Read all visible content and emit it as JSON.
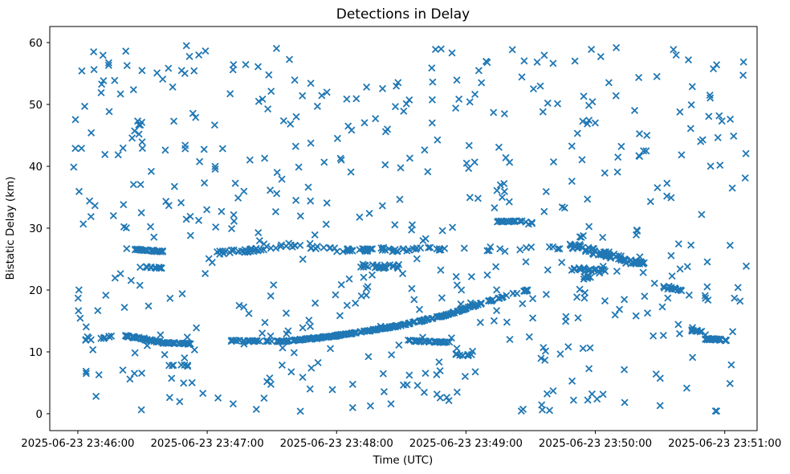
{
  "figure": {
    "background": "#ffffff",
    "spine_color": "#000000"
  },
  "chart_data": {
    "type": "scatter",
    "title": "Detections in Delay",
    "xlabel": "Time (UTC)",
    "ylabel": "Bistatic Delay (km)",
    "marker": "x",
    "marker_color": "#1f77b4",
    "legend": "none",
    "grid": false,
    "x_axis": {
      "unit": "seconds after 2025-06-23 23:46:00 UTC",
      "range": [
        -13,
        315
      ],
      "ticks": [
        {
          "t": 0,
          "label": "2025-06-23 23:46:00"
        },
        {
          "t": 60,
          "label": "2025-06-23 23:47:00"
        },
        {
          "t": 120,
          "label": "2025-06-23 23:48:00"
        },
        {
          "t": 180,
          "label": "2025-06-23 23:49:00"
        },
        {
          "t": 240,
          "label": "2025-06-23 23:50:00"
        },
        {
          "t": 300,
          "label": "2025-06-23 23:51:00"
        }
      ]
    },
    "y_axis": {
      "unit": "km",
      "range": [
        -2.73,
        62.6
      ],
      "ticks": [
        0,
        10,
        20,
        30,
        40,
        50,
        60
      ]
    },
    "tracks": [
      {
        "name": "early-12km-lead-in",
        "t0": 8,
        "t1": 18,
        "d0": 12.3,
        "d1": 12.6,
        "n": 6,
        "jd": 0.3
      },
      {
        "name": "descending-track-1",
        "t0": 20,
        "t1": 31,
        "d0": 12.7,
        "d1": 12.1,
        "n": 26,
        "jd": 0.12
      },
      {
        "name": "descending-track-2",
        "t0": 31,
        "t1": 38,
        "d0": 12.0,
        "d1": 11.6,
        "n": 20,
        "jd": 0.12
      },
      {
        "name": "descending-track-3",
        "t0": 38,
        "t1": 53,
        "d0": 11.5,
        "d1": 11.3,
        "n": 32,
        "jd": 0.1
      },
      {
        "name": "rising-track-flat",
        "t0": 71,
        "t1": 95,
        "d0": 11.8,
        "d1": 11.7,
        "n": 36,
        "jd": 0.1
      },
      {
        "name": "rising-track-1",
        "t0": 95,
        "t1": 113,
        "d0": 11.7,
        "d1": 12.3,
        "n": 42,
        "jd": 0.1
      },
      {
        "name": "rising-track-2",
        "t0": 113,
        "t1": 131,
        "d0": 12.3,
        "d1": 13.2,
        "n": 48,
        "jd": 0.1
      },
      {
        "name": "rising-track-3",
        "t0": 131,
        "t1": 150,
        "d0": 13.2,
        "d1": 14.3,
        "n": 52,
        "jd": 0.1
      },
      {
        "name": "rising-track-4",
        "t0": 150,
        "t1": 169,
        "d0": 14.3,
        "d1": 15.8,
        "n": 46,
        "jd": 0.1
      },
      {
        "name": "rising-track-5",
        "t0": 169,
        "t1": 187,
        "d0": 15.8,
        "d1": 17.8,
        "n": 36,
        "jd": 0.1
      },
      {
        "name": "rising-track-6",
        "t0": 187,
        "t1": 202,
        "d0": 17.8,
        "d1": 19.4,
        "n": 16,
        "jd": 0.1
      },
      {
        "name": "rising-track-7",
        "t0": 202,
        "t1": 209,
        "d0": 19.4,
        "d1": 20.0,
        "n": 6,
        "jd": 0.1
      },
      {
        "name": "segment-26km-early",
        "t0": 26.5,
        "t1": 40,
        "d0": 26.6,
        "d1": 26.2,
        "n": 30,
        "jd": 0.1
      },
      {
        "name": "segment-23km-early",
        "t0": 31,
        "t1": 39,
        "d0": 23.7,
        "d1": 23.6,
        "n": 14,
        "jd": 0.1
      },
      {
        "name": "band-26km-1",
        "t0": 64,
        "t1": 82,
        "d0": 26.0,
        "d1": 26.5,
        "n": 22,
        "jd": 0.3
      },
      {
        "name": "band-26km-2",
        "t0": 82,
        "t1": 95,
        "d0": 26.5,
        "d1": 27.1,
        "n": 10,
        "jd": 0.3
      },
      {
        "name": "band-26km-3",
        "t0": 95,
        "t1": 108,
        "d0": 27.2,
        "d1": 27.3,
        "n": 6,
        "jd": 0.3
      },
      {
        "name": "band-26km-4",
        "t0": 108,
        "t1": 125,
        "d0": 27.0,
        "d1": 26.3,
        "n": 10,
        "jd": 0.3
      },
      {
        "name": "band-26km-5",
        "t0": 125,
        "t1": 145,
        "d0": 26.4,
        "d1": 26.6,
        "n": 25,
        "jd": 0.25
      },
      {
        "name": "band-26km-6",
        "t0": 145,
        "t1": 163,
        "d0": 26.4,
        "d1": 26.8,
        "n": 15,
        "jd": 0.3
      },
      {
        "name": "band-26km-7",
        "t0": 163,
        "t1": 172,
        "d0": 26.6,
        "d1": 26.5,
        "n": 6,
        "jd": 0.3
      },
      {
        "name": "band-26km-sparse-1",
        "t0": 172,
        "t1": 200,
        "d0": 26.5,
        "d1": 26.6,
        "n": 6,
        "jd": 0.5
      },
      {
        "name": "band-26km-sparse-2",
        "t0": 205,
        "t1": 225,
        "d0": 26.3,
        "d1": 26.8,
        "n": 5,
        "jd": 0.6
      },
      {
        "name": "blob-24km-mid",
        "t0": 131,
        "t1": 149,
        "d0": 23.9,
        "d1": 23.8,
        "n": 26,
        "jd": 0.35
      },
      {
        "name": "segment-31km",
        "t0": 194.5,
        "t1": 206,
        "d0": 31.1,
        "d1": 31.1,
        "n": 20,
        "jd": 0.08
      },
      {
        "name": "segment-31km-tail",
        "t0": 206,
        "t1": 211,
        "d0": 31.0,
        "d1": 30.9,
        "n": 3,
        "jd": 0.15
      },
      {
        "name": "cluster-2350-upper-1",
        "t0": 227,
        "t1": 240,
        "d0": 27.3,
        "d1": 26.2,
        "n": 30,
        "jd": 0.55
      },
      {
        "name": "cluster-2350-upper-2",
        "t0": 240,
        "t1": 252,
        "d0": 26.2,
        "d1": 25.2,
        "n": 30,
        "jd": 0.5
      },
      {
        "name": "cluster-2350-tail",
        "t0": 252,
        "t1": 263,
        "d0": 24.8,
        "d1": 24.2,
        "n": 25,
        "jd": 0.35
      },
      {
        "name": "cluster-2350-lower",
        "t0": 229,
        "t1": 246,
        "d0": 23.4,
        "d1": 23.0,
        "n": 22,
        "jd": 0.35
      },
      {
        "name": "cluster-2350-22km",
        "t0": 231,
        "t1": 238,
        "d0": 22.0,
        "d1": 22.0,
        "n": 5,
        "jd": 0.25
      },
      {
        "name": "blob-20km-right",
        "t0": 271.5,
        "t1": 280,
        "d0": 20.5,
        "d1": 20.1,
        "n": 14,
        "jd": 0.25
      },
      {
        "name": "blob-13km-right",
        "t0": 284.5,
        "t1": 290,
        "d0": 13.5,
        "d1": 13.3,
        "n": 10,
        "jd": 0.15
      },
      {
        "name": "segment-12km-right",
        "t0": 291,
        "t1": 301,
        "d0": 12.1,
        "d1": 11.9,
        "n": 24,
        "jd": 0.12
      },
      {
        "name": "blob-9km",
        "t0": 175,
        "t1": 183,
        "d0": 9.6,
        "d1": 9.4,
        "n": 12,
        "jd": 0.15
      },
      {
        "name": "run-8km-early",
        "t0": 40,
        "t1": 51,
        "d0": 7.9,
        "d1": 7.8,
        "n": 7,
        "jd": 0.15
      },
      {
        "name": "run-12km-left-edge",
        "t0": 0,
        "t1": 12,
        "d0": 12.0,
        "d1": 12.2,
        "n": 5,
        "jd": 0.25
      },
      {
        "name": "segment-12km-mid-flat",
        "t0": 151.5,
        "t1": 172.5,
        "d0": 11.85,
        "d1": 11.5,
        "n": 34,
        "jd": 0.09
      },
      {
        "name": "noise-strip-46km",
        "t0": 25,
        "t1": 30,
        "d0": 46.0,
        "d1": 46.5,
        "n": 8,
        "jd": 2.8
      }
    ],
    "noise": {
      "n": 520,
      "t_range": [
        -2,
        310
      ],
      "d_range": [
        0.3,
        59.7
      ],
      "seed": 1337
    }
  }
}
